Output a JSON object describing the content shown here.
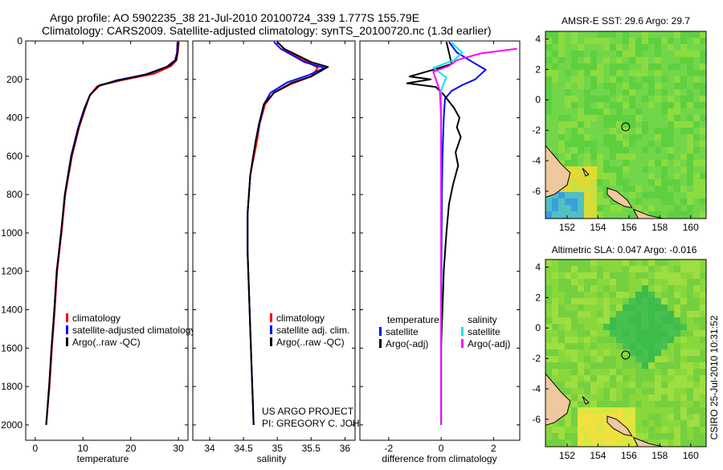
{
  "header": {
    "line1": "Argo profile: AO 5902235_38 21-Jul-2010 20100724_339 1.777S 155.79E",
    "line2": "Climatology: CARS2009. Satellite-adjusted climatology: synTS_20100720.nc (1.3d earlier)"
  },
  "colors": {
    "climatology": "#ff0000",
    "satellite": "#0000ff",
    "argo": "#000000",
    "salinity_satellite": "#00e5ee",
    "salinity_argo": "#ff00ff",
    "land": "#f0c8a0"
  },
  "depth_ticks": [
    "0",
    "200",
    "400",
    "600",
    "800",
    "1000",
    "1200",
    "1400",
    "1600",
    "1800",
    "2000"
  ],
  "chart_data": [
    {
      "type": "line",
      "xlabel": "temperature",
      "ylabel": "",
      "xlim": [
        -2,
        32
      ],
      "ylim": [
        2080,
        0
      ],
      "xticks": [
        "0",
        "10",
        "20",
        "30"
      ],
      "legend": [
        "climatology",
        "satellite-adjusted climatology",
        "Argo(..raw -QC)"
      ],
      "series": [
        {
          "name": "climatology",
          "color": "red",
          "points": [
            [
              30.1,
              5
            ],
            [
              29.9,
              60
            ],
            [
              29.6,
              100
            ],
            [
              28.5,
              130
            ],
            [
              25,
              170
            ],
            [
              18,
              205
            ],
            [
              13,
              235
            ],
            [
              11.5,
              280
            ],
            [
              10.5,
              350
            ],
            [
              9.2,
              450
            ],
            [
              7.7,
              600
            ],
            [
              6.3,
              800
            ],
            [
              5.5,
              1000
            ],
            [
              4.6,
              1200
            ],
            [
              4.1,
              1400
            ],
            [
              3.5,
              1600
            ],
            [
              3,
              1800
            ],
            [
              2.3,
              2000
            ]
          ]
        },
        {
          "name": "satellite-adjusted climatology",
          "color": "blue",
          "points": [
            [
              29.8,
              5
            ],
            [
              29.7,
              60
            ],
            [
              29.3,
              100
            ],
            [
              27.5,
              135
            ],
            [
              23,
              175
            ],
            [
              17,
              205
            ],
            [
              13.3,
              235
            ],
            [
              11.4,
              285
            ],
            [
              10.3,
              350
            ],
            [
              9,
              450
            ],
            [
              7.5,
              600
            ],
            [
              6.2,
              800
            ],
            [
              5.4,
              1000
            ],
            [
              4.5,
              1200
            ],
            [
              4,
              1400
            ],
            [
              3.4,
              1600
            ],
            [
              2.9,
              1800
            ],
            [
              2.3,
              2000
            ]
          ]
        },
        {
          "name": "Argo",
          "color": "black",
          "points": [
            [
              29.9,
              5
            ],
            [
              29.8,
              60
            ],
            [
              29.5,
              100
            ],
            [
              28,
              130
            ],
            [
              24,
              170
            ],
            [
              17.5,
              205
            ],
            [
              13.5,
              230
            ],
            [
              11.5,
              280
            ],
            [
              10.4,
              350
            ],
            [
              9.1,
              450
            ],
            [
              7.6,
              600
            ],
            [
              6.2,
              800
            ],
            [
              5.4,
              1000
            ],
            [
              4.5,
              1200
            ],
            [
              4,
              1400
            ],
            [
              3.4,
              1600
            ],
            [
              2.9,
              1800
            ],
            [
              2.3,
              2000
            ]
          ]
        }
      ]
    },
    {
      "type": "line",
      "xlabel": "salinity",
      "xlim": [
        33.75,
        36.15
      ],
      "ylim": [
        2080,
        0
      ],
      "xticks": [
        "34",
        "34.5",
        "35",
        "35.5",
        "36"
      ],
      "legend": [
        "climatology",
        "satellite adj. clim.",
        "Argo(..raw -QC)"
      ],
      "series": [
        {
          "name": "climatology",
          "color": "red",
          "points": [
            [
              35,
              5
            ],
            [
              35.1,
              40
            ],
            [
              35.45,
              110
            ],
            [
              35.6,
              140
            ],
            [
              35.5,
              185
            ],
            [
              35.2,
              225
            ],
            [
              34.95,
              270
            ],
            [
              34.82,
              330
            ],
            [
              34.74,
              430
            ],
            [
              34.7,
              520
            ],
            [
              34.6,
              700
            ],
            [
              34.56,
              900
            ],
            [
              34.56,
              1100
            ],
            [
              34.58,
              1300
            ],
            [
              34.6,
              1500
            ],
            [
              34.62,
              1700
            ],
            [
              34.64,
              1900
            ],
            [
              34.65,
              2000
            ]
          ]
        },
        {
          "name": "satellite adj. clim.",
          "color": "blue",
          "points": [
            [
              34.95,
              5
            ],
            [
              35.05,
              40
            ],
            [
              35.4,
              110
            ],
            [
              35.7,
              140
            ],
            [
              35.45,
              180
            ],
            [
              35.15,
              215
            ],
            [
              34.9,
              270
            ],
            [
              34.8,
              330
            ],
            [
              34.74,
              430
            ],
            [
              34.68,
              520
            ],
            [
              34.6,
              700
            ],
            [
              34.56,
              900
            ],
            [
              34.56,
              1100
            ],
            [
              34.58,
              1300
            ],
            [
              34.6,
              1500
            ],
            [
              34.62,
              1700
            ],
            [
              34.64,
              1900
            ],
            [
              34.65,
              2000
            ]
          ]
        },
        {
          "name": "Argo",
          "color": "black",
          "points": [
            [
              35,
              5
            ],
            [
              35.1,
              40
            ],
            [
              35.5,
              110
            ],
            [
              35.75,
              135
            ],
            [
              35.5,
              185
            ],
            [
              35.2,
              220
            ],
            [
              34.95,
              270
            ],
            [
              34.8,
              330
            ],
            [
              34.73,
              430
            ],
            [
              34.68,
              520
            ],
            [
              34.6,
              700
            ],
            [
              34.56,
              900
            ],
            [
              34.56,
              1100
            ],
            [
              34.58,
              1300
            ],
            [
              34.6,
              1500
            ],
            [
              34.62,
              1700
            ],
            [
              34.64,
              1900
            ],
            [
              34.65,
              2000
            ]
          ]
        }
      ],
      "annotation": [
        "US ARGO PROJECT",
        "PI: GREGORY C. JOHNSON"
      ]
    },
    {
      "type": "line",
      "xlabel": "difference from climatology",
      "xlim": [
        -3.1,
        3.0
      ],
      "ylim": [
        2080,
        0
      ],
      "xticks": [
        "-2",
        "0",
        "2"
      ],
      "legend_headings": [
        "temperature",
        "salinity"
      ],
      "legend": [
        "satellite",
        "Argo(-adj)",
        "satellite",
        "Argo(-adj)"
      ],
      "series": [
        {
          "name": "temperature satellite",
          "color": "blue",
          "points": [
            [
              0.3,
              5
            ],
            [
              0.6,
              60
            ],
            [
              1.2,
              110
            ],
            [
              1.7,
              150
            ],
            [
              1.3,
              200
            ],
            [
              0.8,
              230
            ],
            [
              0.4,
              260
            ],
            [
              0.15,
              300
            ],
            [
              0.1,
              400
            ],
            [
              0.05,
              600
            ],
            [
              0.03,
              800
            ],
            [
              0.02,
              1000
            ],
            [
              0,
              1400
            ],
            [
              0,
              2000
            ]
          ]
        },
        {
          "name": "temperature Argo(-adj)",
          "color": "black",
          "points": [
            [
              0.2,
              5
            ],
            [
              0.3,
              60
            ],
            [
              0.4,
              120
            ],
            [
              -0.3,
              150
            ],
            [
              -1.2,
              185
            ],
            [
              -0.4,
              200
            ],
            [
              -1.3,
              220
            ],
            [
              -0.2,
              240
            ],
            [
              0.1,
              280
            ],
            [
              0.5,
              350
            ],
            [
              0.7,
              400
            ],
            [
              0.6,
              450
            ],
            [
              0.75,
              500
            ],
            [
              0.55,
              580
            ],
            [
              0.65,
              650
            ],
            [
              0.45,
              750
            ],
            [
              0.3,
              850
            ],
            [
              0.2,
              1000
            ],
            [
              0.1,
              1200
            ],
            [
              0.05,
              1400
            ],
            [
              0,
              1600
            ],
            [
              0,
              2000
            ]
          ]
        },
        {
          "name": "salinity satellite",
          "color": "cyan",
          "points": [
            [
              0.4,
              10
            ],
            [
              0.8,
              60
            ],
            [
              0.5,
              100
            ],
            [
              -0.3,
              140
            ],
            [
              0.2,
              190
            ],
            [
              0.1,
              220
            ],
            [
              0,
              260
            ],
            [
              0,
              400
            ],
            [
              0,
              700
            ],
            [
              0,
              2000
            ]
          ]
        },
        {
          "name": "salinity Argo(-adj)",
          "color": "magenta",
          "points": [
            [
              2.9,
              40
            ],
            [
              1.5,
              65
            ],
            [
              0.6,
              100
            ],
            [
              0.3,
              130
            ],
            [
              -0.3,
              160
            ],
            [
              -0.2,
              200
            ],
            [
              -0.05,
              260
            ],
            [
              0,
              400
            ],
            [
              0,
              2000
            ]
          ]
        }
      ]
    },
    {
      "type": "heatmap",
      "title": "AMSR-E SST: 29.6 Argo: 29.7",
      "xlim": [
        150.6,
        161
      ],
      "ylim": [
        -7.8,
        4.5
      ],
      "xticks": [
        "152",
        "154",
        "156",
        "158",
        "160"
      ],
      "yticks": [
        "4",
        "2",
        "0",
        "-2",
        "-4",
        "-6"
      ],
      "argo_position": {
        "lon": 155.79,
        "lat": -1.777
      }
    },
    {
      "type": "heatmap",
      "title": "Altimetric SLA: 0.047 Argo: -0.016",
      "xlim": [
        150.6,
        161
      ],
      "ylim": [
        -7.8,
        4.5
      ],
      "xticks": [
        "152",
        "154",
        "156",
        "158",
        "160"
      ],
      "yticks": [
        "4",
        "2",
        "0",
        "-2",
        "-4",
        "-6"
      ],
      "argo_position": {
        "lon": 155.79,
        "lat": -1.777
      }
    }
  ],
  "footer": {
    "vertical_label": "CSIRO 25-Jul-2010 10:31:52"
  }
}
